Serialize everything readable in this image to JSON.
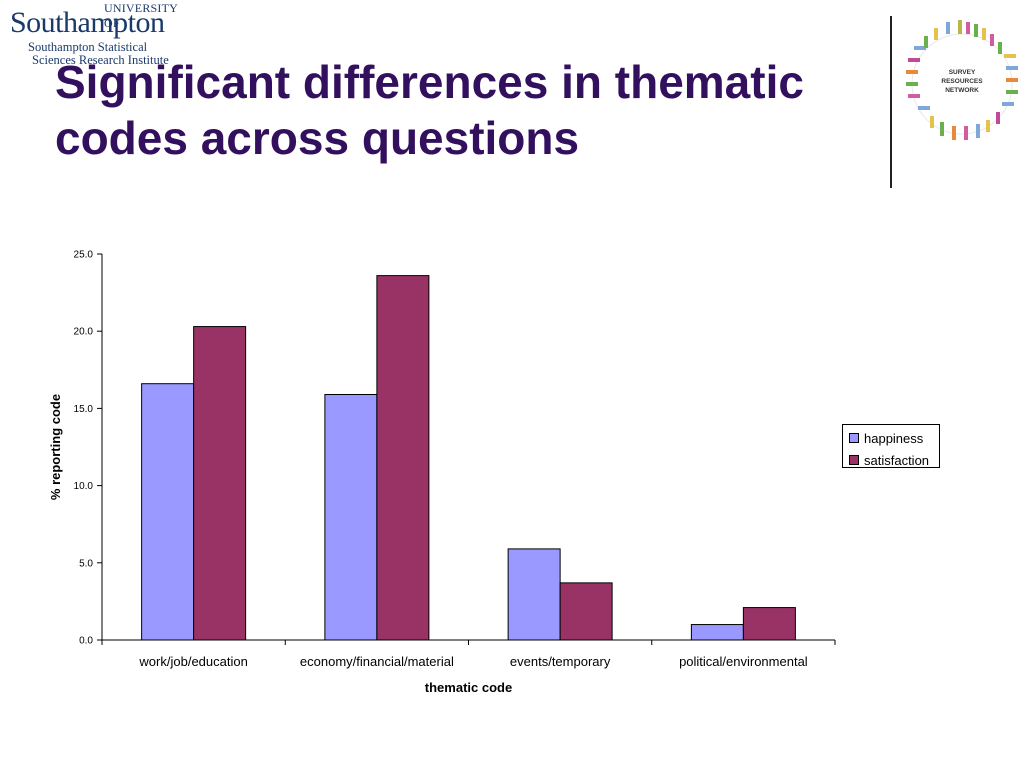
{
  "header": {
    "logo_university_of": "UNIVERSITY OF",
    "logo_southampton": "Southampton",
    "logo_institute_line1": "Southampton Statistical",
    "logo_institute_line2": "Sciences Research Institute",
    "title": "Significant differences in thematic codes across questions",
    "partner_logo_text": [
      "SURVEY",
      "RESOURCES",
      "NETWORK"
    ]
  },
  "colors": {
    "title": "#33105e",
    "happiness": "#9999ff",
    "satisfaction": "#993366"
  },
  "chart_data": {
    "type": "bar",
    "title": "",
    "xlabel": "thematic code",
    "ylabel": "% reporting code",
    "categories": [
      "work/job/education",
      "economy/financial/material",
      "events/temporary",
      "political/environmental"
    ],
    "series": [
      {
        "name": "happiness",
        "values": [
          16.6,
          15.9,
          5.9,
          1.0
        ]
      },
      {
        "name": "satisfaction",
        "values": [
          20.3,
          23.6,
          3.7,
          2.1
        ]
      }
    ],
    "ylim": [
      0,
      25
    ],
    "yticks": [
      "0.0",
      "5.0",
      "10.0",
      "15.0",
      "20.0",
      "25.0"
    ],
    "grid": false,
    "legend": "right"
  }
}
